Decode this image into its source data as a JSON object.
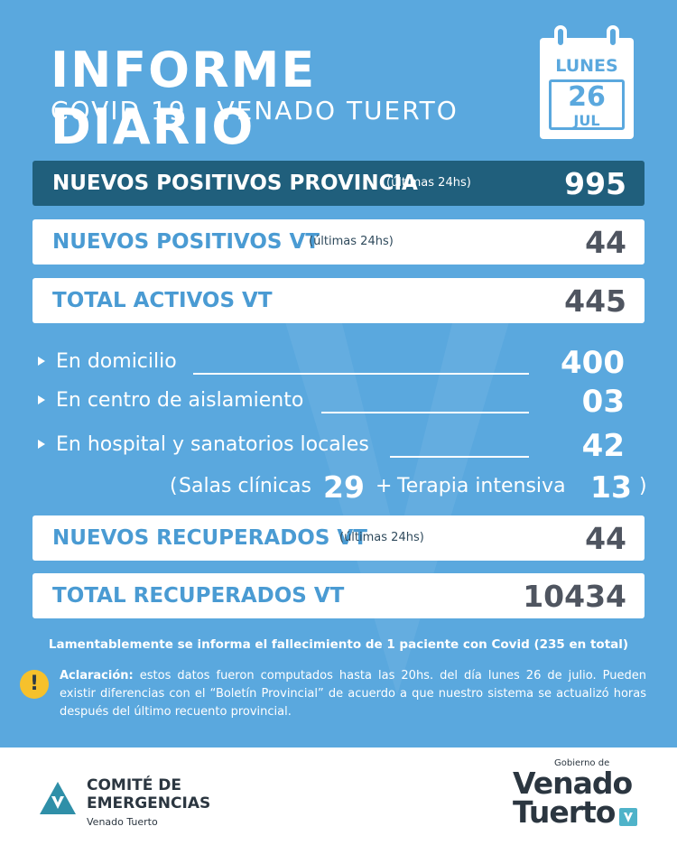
{
  "header": {
    "title": "INFORME DIARIO",
    "subtitle": "COVID 19 - VENADO TUERTO",
    "calendar": {
      "day_name": "LUNES",
      "day_number": "26",
      "month": "JUL"
    }
  },
  "summary": [
    {
      "label": "NUEVOS POSITIVOS PROVINCIA",
      "note": "(últimas 24hs)",
      "value": "995"
    },
    {
      "label": "NUEVOS POSITIVOS VT",
      "note": "(últimas 24hs)",
      "value": "44"
    },
    {
      "label": "TOTAL ACTIVOS VT",
      "note": "",
      "value": "445"
    }
  ],
  "breakdown": [
    {
      "label": "En domicilio",
      "value": "400"
    },
    {
      "label": "En centro de aislamiento",
      "value": "03"
    },
    {
      "label": "En hospital y sanatorios locales",
      "value": "42"
    }
  ],
  "hospital_detail": {
    "open": "(",
    "salas_label": "Salas clínicas",
    "salas_value": "29",
    "plus": "+",
    "terapia_label": "Terapia intensiva",
    "terapia_value": "13",
    "close": ")"
  },
  "recovered": [
    {
      "label": "NUEVOS RECUPERADOS VT",
      "note": "(últimas 24hs)",
      "value": "44"
    },
    {
      "label": "TOTAL RECUPERADOS VT",
      "note": "",
      "value": "10434"
    }
  ],
  "deaths_notice": "Lamentablemente se informa el fallecimiento de 1 paciente con Covid (235 en total)",
  "clarification": {
    "lead": "Aclaración:",
    "text": " estos datos fueron computados hasta las 20hs. del día lunes 26 de julio. Pueden existir diferencias con el “Boletín Provincial” de acuerdo a que nuestro sistema se actualizó horas después del último recuento provincial."
  },
  "footer": {
    "committee_line1": "COMITÉ DE",
    "committee_line2": "EMERGENCIAS",
    "committee_city": "Venado Tuerto",
    "gov_top": "Gobierno de",
    "gov_line1": "Venado",
    "gov_line2": "Tuerto"
  },
  "colors": {
    "background": "#5aa8de",
    "highlight_bar": "#205f7c",
    "label_blue": "#4a9bd3",
    "value_gray": "#4f5560",
    "warning": "#f6c12c"
  }
}
